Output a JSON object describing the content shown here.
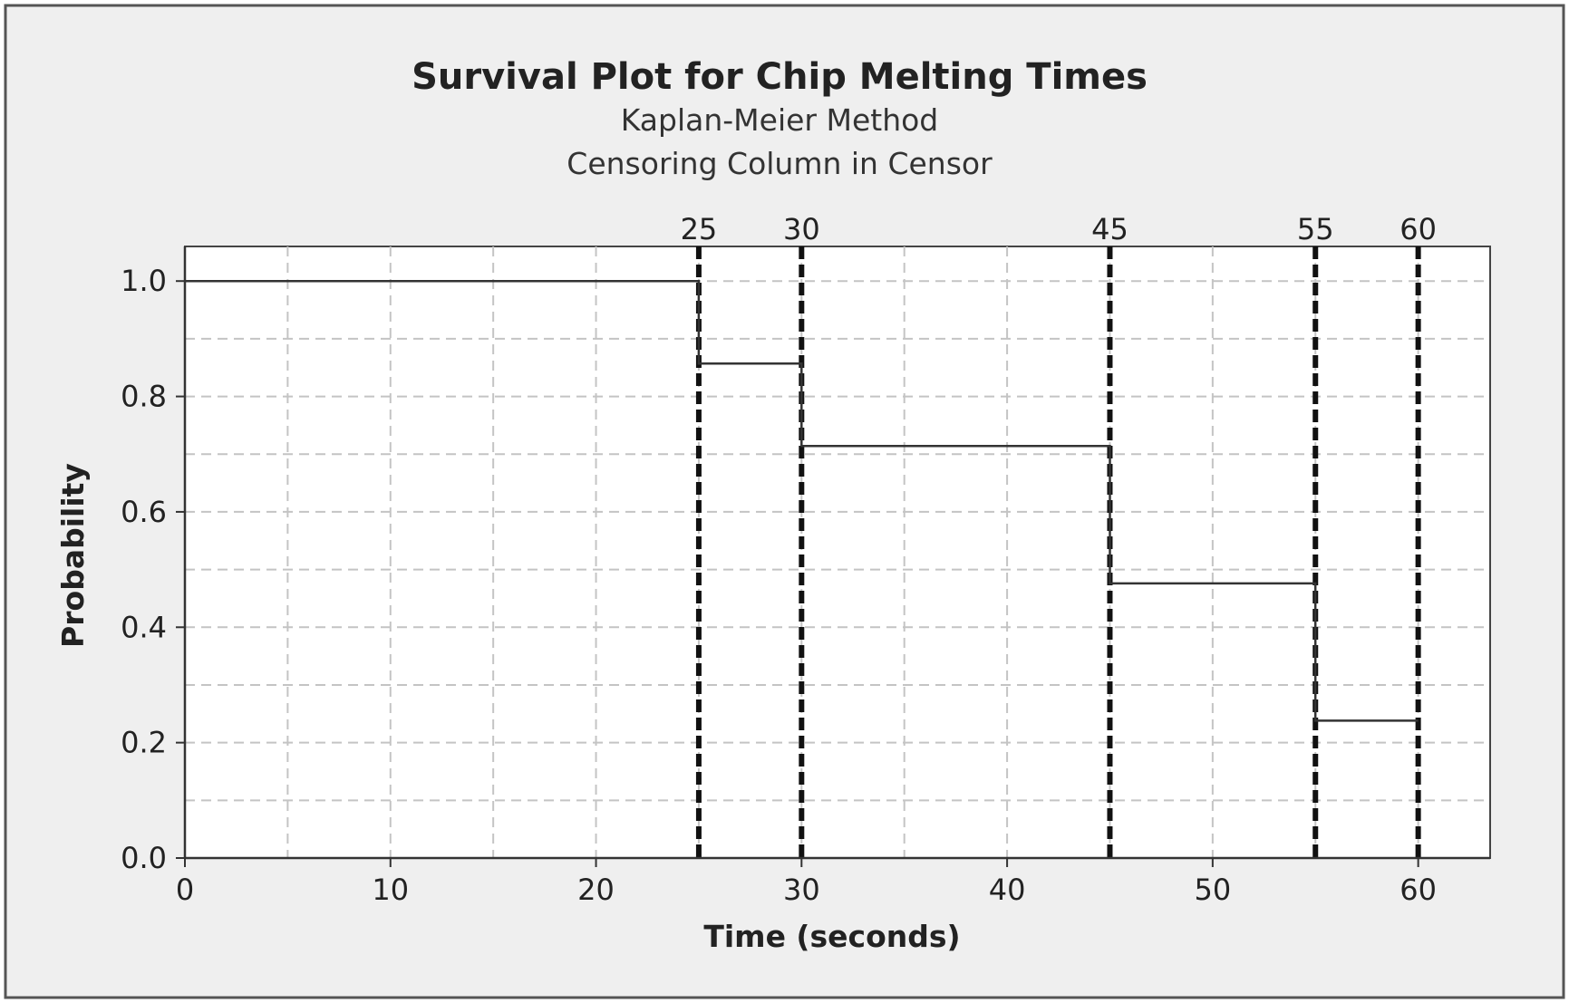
{
  "chart_data": {
    "type": "line",
    "step": true,
    "title": "Survival Plot for Chip Melting Times",
    "subtitles": [
      "Kaplan-Meier Method",
      "Censoring Column in Censor"
    ],
    "xlabel": "Time (seconds)",
    "ylabel": "Probability",
    "xlim": [
      0,
      63.5
    ],
    "ylim": [
      0.0,
      1.06
    ],
    "xticks": [
      0,
      10,
      20,
      30,
      40,
      50,
      60
    ],
    "xtick_labels": [
      "0",
      "10",
      "20",
      "30",
      "40",
      "50",
      "60"
    ],
    "yticks": [
      0.0,
      0.2,
      0.4,
      0.6,
      0.8,
      1.0
    ],
    "ytick_labels": [
      "0.0",
      "0.2",
      "0.4",
      "0.6",
      "0.8",
      "1.0"
    ],
    "grid": true,
    "series": [
      {
        "x": [
          0,
          25,
          25,
          30,
          30,
          45,
          45,
          55,
          55,
          60
        ],
        "y": [
          1.0,
          1.0,
          0.857,
          0.857,
          0.714,
          0.714,
          0.476,
          0.476,
          0.238,
          0.238
        ]
      }
    ],
    "reference_lines": [
      {
        "x": 25,
        "label": "25"
      },
      {
        "x": 30,
        "label": "30"
      },
      {
        "x": 45,
        "label": "45"
      },
      {
        "x": 55,
        "label": "55"
      },
      {
        "x": 60,
        "label": "60"
      }
    ]
  }
}
